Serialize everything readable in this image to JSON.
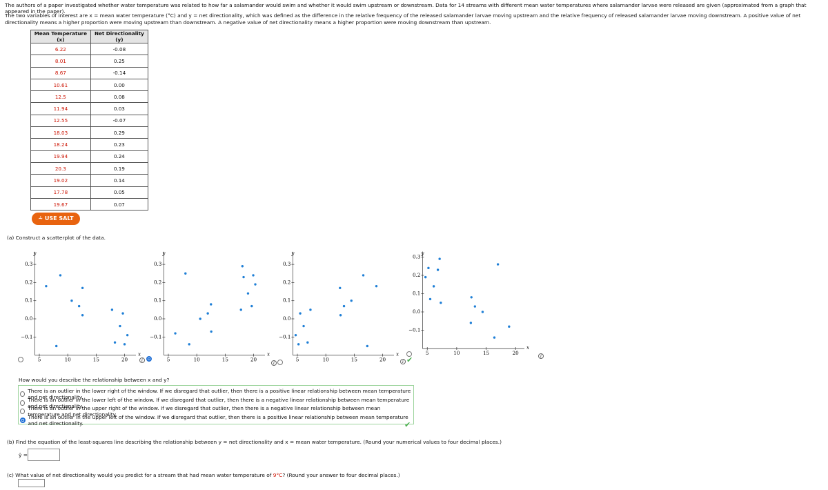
{
  "intro": [
    "The authors of a paper investigated whether water temperature was related to how far a salamander would swim and whether it would swim upstream or downstream. Data for 14 streams with different mean water temperatures where salamander larvae were released are given (approximated from a graph that appeared in the paper).",
    "The two variables of interest are x = mean water temperature (°C) and y = net directionality, which was defined as the difference in the relative frequency of the released salamander larvae moving upstream and the relative frequency of released salamander larvae moving downstream. A positive value of net directionality means a higher proportion were moving upstream than downstream. A negative value of net directionality means a higher proportion were moving downstream than upstream."
  ],
  "table": {
    "headers": [
      "Mean Temperature (x)",
      "Net Directionality (y)"
    ],
    "rows": [
      [
        "6.22",
        "-0.08"
      ],
      [
        "8.01",
        "0.25"
      ],
      [
        "8.67",
        "-0.14"
      ],
      [
        "10.61",
        "0.00"
      ],
      [
        "12.5",
        "0.08"
      ],
      [
        "11.94",
        "0.03"
      ],
      [
        "12.55",
        "-0.07"
      ],
      [
        "18.03",
        "0.29"
      ],
      [
        "18.24",
        "0.23"
      ],
      [
        "19.94",
        "0.24"
      ],
      [
        "20.3",
        "0.19"
      ],
      [
        "19.02",
        "0.14"
      ],
      [
        "17.78",
        "0.05"
      ],
      [
        "19.67",
        "0.07"
      ]
    ]
  },
  "salt_button": "USE SALT",
  "part_a": {
    "prompt": "(a) Construct a scatterplot of the data.",
    "question": "How would you describe the relationship between x and y?",
    "options": [
      "There is an outlier in the lower right of the window. If we disregard that outlier, then there is a positive linear relationship between mean temperature and net directionality.",
      "There is an outlier in the lower left of the window. If we disregard that outlier, then there is a negative linear relationship between mean temperature and net directionality.",
      "There is an outlier in the upper right of the window. If we disregard that outlier, then there is a negative linear relationship between mean temperature and net directionality.",
      "There is an outlier in the upper left of the window. If we disregard that outlier, then there is a positive linear relationship between mean temperature and net directionality."
    ]
  },
  "chart_data": [
    {
      "type": "scatter",
      "x_label": "x",
      "y_label": "y",
      "color": "#1f7fd6",
      "xlim": [
        4.2,
        22
      ],
      "ylim": [
        -0.2,
        0.37
      ],
      "xticks": [
        5,
        10,
        15,
        20
      ],
      "yticks": [
        0.3,
        0.2,
        0.1,
        {
          "value": 0,
          "label": "0.0"
        },
        {
          "value": -0.1,
          "label": "−0.1"
        }
      ],
      "x": [
        6.2,
        8.7,
        12.6,
        10.7,
        12.0,
        12.6,
        8.0,
        17.8,
        19.7,
        19.2,
        20.5,
        18.3,
        20.0
      ],
      "y": [
        0.18,
        0.24,
        0.17,
        0.1,
        0.07,
        0.02,
        -0.15,
        0.05,
        0.03,
        -0.04,
        -0.09,
        -0.13,
        -0.14
      ]
    },
    {
      "type": "scatter",
      "x_label": "x",
      "y_label": "y",
      "color": "#1f7fd6",
      "xlim": [
        4.2,
        22
      ],
      "ylim": [
        -0.2,
        0.37
      ],
      "xticks": [
        5,
        10,
        15,
        20
      ],
      "yticks": [
        0.3,
        0.2,
        0.1,
        {
          "value": 0,
          "label": "0.0"
        },
        {
          "value": -0.1,
          "label": "−0.1"
        }
      ],
      "x": [
        6.22,
        8.01,
        8.67,
        10.61,
        12.5,
        11.94,
        12.55,
        18.03,
        18.24,
        19.94,
        20.3,
        19.02,
        17.78,
        19.67
      ],
      "y": [
        -0.08,
        0.25,
        -0.14,
        0,
        0.08,
        0.03,
        -0.07,
        0.29,
        0.23,
        0.24,
        0.19,
        0.14,
        0.05,
        0.07
      ]
    },
    {
      "type": "scatter",
      "x_label": "x",
      "y_label": "y",
      "color": "#1f7fd6",
      "xlim": [
        4.2,
        22
      ],
      "ylim": [
        -0.2,
        0.37
      ],
      "xticks": [
        5,
        10,
        15,
        20
      ],
      "yticks": [
        0.3,
        0.2,
        0.1,
        {
          "value": 0,
          "label": "0.0"
        },
        {
          "value": -0.1,
          "label": "−0.1"
        }
      ],
      "x": [
        16.6,
        18.9,
        12.5,
        14.5,
        13.2,
        12.6,
        7.3,
        5.5,
        6.1,
        4.7,
        6.8,
        5.2,
        17.3
      ],
      "y": [
        0.24,
        0.18,
        0.17,
        0.1,
        0.07,
        0.02,
        0.05,
        0.03,
        -0.04,
        -0.09,
        -0.13,
        -0.14,
        -0.15
      ]
    },
    {
      "type": "scatter",
      "x_label": "x",
      "y_label": "y",
      "color": "#1f7fd6",
      "xlim": [
        4.2,
        21.5
      ],
      "ylim": [
        -0.2,
        0.33
      ],
      "xticks": [
        5,
        10,
        15,
        20
      ],
      "yticks": [
        0.3,
        0.2,
        0.1,
        {
          "value": 0,
          "label": "0.0"
        },
        {
          "value": -0.1,
          "label": "−0.1"
        }
      ],
      "x": [
        7.1,
        5.2,
        6.8,
        4.7,
        6.1,
        5.5,
        7.3,
        12.5,
        13.1,
        14.4,
        12.4,
        17.0,
        18.9,
        16.4
      ],
      "y": [
        0.29,
        0.24,
        0.23,
        0.19,
        0.14,
        0.07,
        0.05,
        0.08,
        0.03,
        0.0,
        -0.06,
        0.26,
        -0.08,
        -0.14
      ]
    }
  ],
  "part_b": {
    "prompt": "(b) Find the equation of the least-squares line describing the relationship between y = net directionality and x = mean water temperature. (Round your numerical values to four decimal places.)",
    "answer_label": "ŷ ="
  },
  "part_c": {
    "before": "(c) What value of net directionality would you predict for a stream that had mean water temperature of ",
    "highlight": "9°C",
    "after": "? (Round your answer to four decimal places.)"
  }
}
